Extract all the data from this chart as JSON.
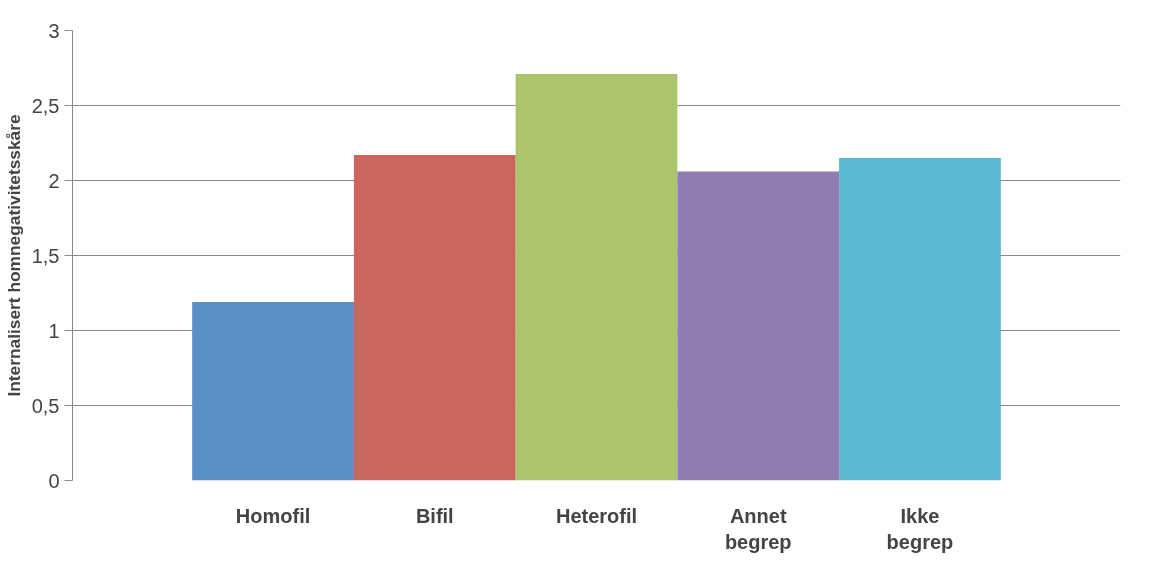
{
  "chart_data": {
    "type": "bar",
    "ylabel": "Internalisert homnegativitetsskåre",
    "categories": [
      "Homofil",
      "Bifil",
      "Heterofil",
      "Annet begrep",
      "Ikke begrep"
    ],
    "values": [
      1.19,
      2.17,
      2.71,
      2.06,
      2.15
    ],
    "colors": [
      "#5a8fc6",
      "#cc665d",
      "#acc46c",
      "#907bb2",
      "#5bb8cf"
    ],
    "ylim": [
      0,
      3
    ],
    "yticks": [
      0,
      {
        "value": 0.5,
        "label": "0,5"
      },
      1,
      {
        "value": 1.5,
        "label": "1,5"
      },
      2,
      {
        "value": 2.5,
        "label": "2,5"
      },
      3
    ],
    "grid": "y"
  }
}
